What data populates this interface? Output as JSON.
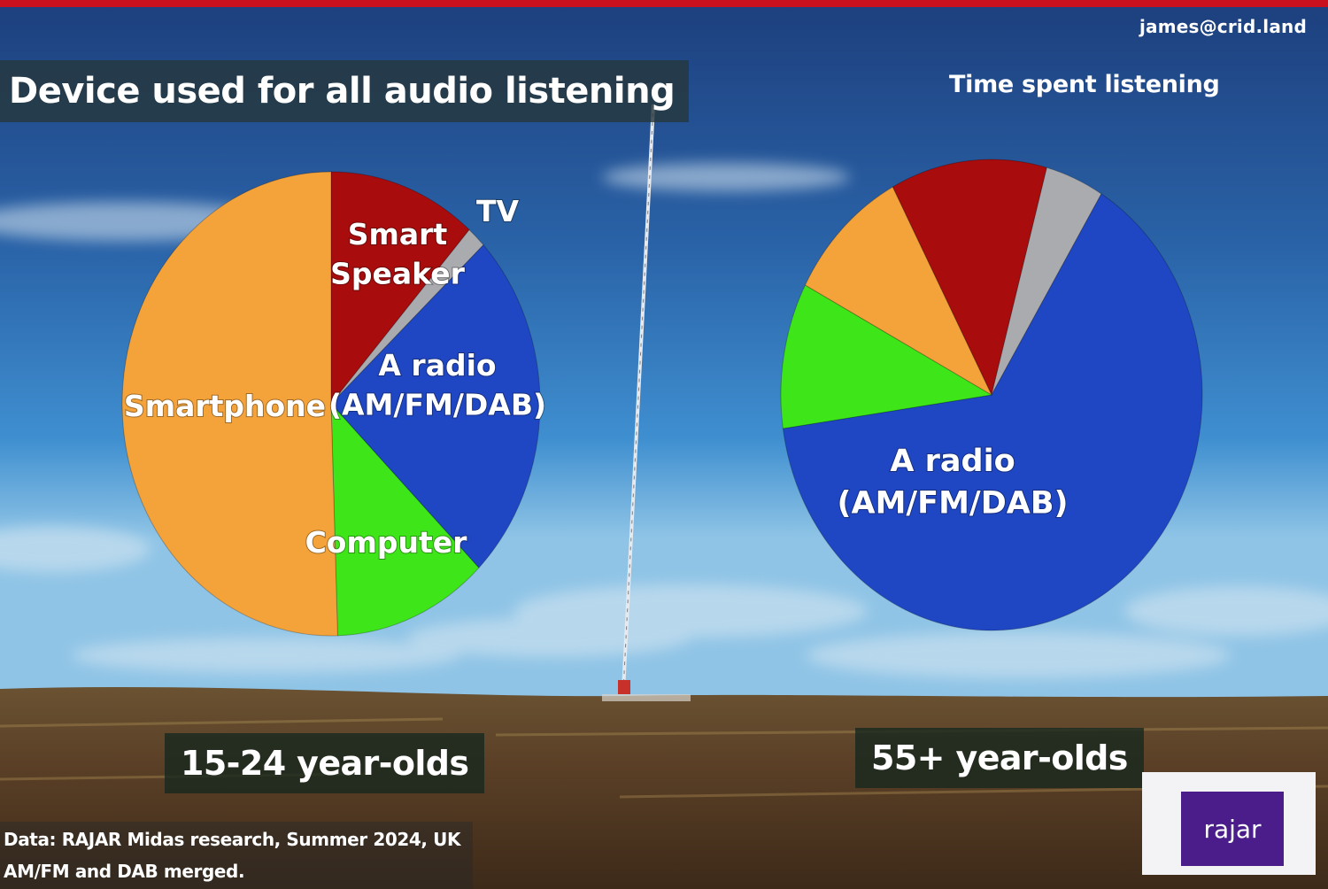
{
  "email": "james@crid.land",
  "title": "Device used for all audio listening",
  "subtitle": "Time spent listening",
  "footnote": {
    "line1": "Data: RAJAR Midas research, Summer 2024, UK",
    "line2": "AM/FM and DAB merged."
  },
  "logo": {
    "text": "rajar"
  },
  "colors": {
    "smartphone": "#f4a23a",
    "smart_speaker": "#a80c0c",
    "tv": "#a9abae",
    "radio": "#1f47c4",
    "computer": "#3ee619"
  },
  "chart_data": [
    {
      "type": "pie",
      "label": "15-24 year-olds",
      "slices": [
        {
          "name": "Smart Speaker",
          "value": 11.5,
          "label_lines": [
            "Smart",
            "Speaker"
          ]
        },
        {
          "name": "TV",
          "value": 1.5,
          "label_lines": [
            "TV"
          ]
        },
        {
          "name": "A radio (AM/FM/DAB)",
          "value": 24.5,
          "label_lines": [
            "A radio",
            "(AM/FM/DAB)"
          ]
        },
        {
          "name": "Computer",
          "value": 12.0,
          "label_lines": [
            "Computer"
          ]
        },
        {
          "name": "Smartphone",
          "value": 50.5,
          "label_lines": [
            "Smartphone"
          ]
        }
      ]
    },
    {
      "type": "pie",
      "label": "55+ year-olds",
      "slices": [
        {
          "name": "Smart Speaker",
          "value": 12.0,
          "label_lines": []
        },
        {
          "name": "TV",
          "value": 4.5,
          "label_lines": []
        },
        {
          "name": "A radio (AM/FM/DAB)",
          "value": 64.0,
          "label_lines": [
            "A radio",
            "(AM/FM/DAB)"
          ]
        },
        {
          "name": "Computer",
          "value": 10.0,
          "label_lines": []
        },
        {
          "name": "Smartphone",
          "value": 9.5,
          "label_lines": []
        }
      ]
    }
  ]
}
